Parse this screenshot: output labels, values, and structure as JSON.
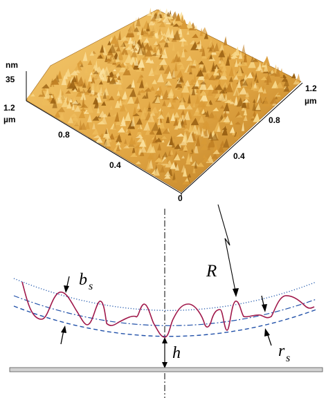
{
  "afm": {
    "z_unit": "nm",
    "z_value": "35",
    "y_top": "1.2",
    "y_unit": "µm",
    "y_ticks": [
      "0.8",
      "0.4"
    ],
    "x_top": "1.2",
    "x_unit": "µm",
    "x_ticks": [
      "0.8",
      "0.4"
    ],
    "origin": "0"
  },
  "schematic": {
    "label_R": "R",
    "label_b": "b",
    "label_b_sub": "s",
    "label_r": "r",
    "label_r_sub": "s",
    "label_h": "h"
  },
  "colors": {
    "surface_light": "#f0c060",
    "surface_dark": "#a86a18",
    "dotted_curve": "#2a5fb0",
    "dashed_curve": "#1f4fa8",
    "profile": "#a0184a",
    "plate": "#c8c8c8"
  }
}
